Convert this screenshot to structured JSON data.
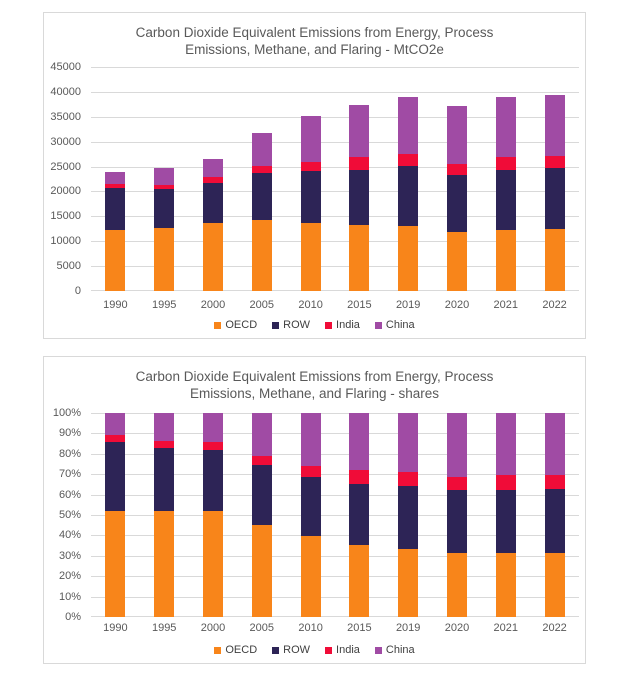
{
  "colors": {
    "oecd": "#F8851A",
    "row": "#2D2456",
    "india": "#F00C38",
    "china": "#A04BA4",
    "gridline": "#D9D9D9",
    "card_border": "#D9D9D9",
    "axis_text": "#595959",
    "title_text": "#595959",
    "legend_text": "#404040",
    "background": "#FFFFFF"
  },
  "chart_data": [
    {
      "type": "bar",
      "stacked": true,
      "title": "Carbon Dioxide Equivalent Emissions from Energy, Process Emissions, Methane, and Flaring - MtCO2e",
      "title_lines": [
        "Carbon Dioxide Equivalent Emissions from Energy, Process",
        "Emissions, Methane, and Flaring - MtCO2e"
      ],
      "unit": "MtCO2e",
      "categories": [
        "1990",
        "1995",
        "2000",
        "2005",
        "2010",
        "2015",
        "2019",
        "2020",
        "2021",
        "2022"
      ],
      "series": [
        {
          "name": "OECD",
          "color": "#F8851A",
          "values": [
            12300,
            12700,
            13700,
            14300,
            13700,
            13200,
            13100,
            11800,
            12300,
            12500
          ]
        },
        {
          "name": "ROW",
          "color": "#2D2456",
          "values": [
            8400,
            7800,
            8000,
            9400,
            10400,
            11200,
            12100,
            11500,
            12100,
            12200
          ]
        },
        {
          "name": "India",
          "color": "#F00C38",
          "values": [
            700,
            900,
            1200,
            1400,
            1900,
            2600,
            2300,
            2200,
            2600,
            2500
          ]
        },
        {
          "name": "China",
          "color": "#A04BA4",
          "values": [
            2600,
            3300,
            3600,
            6700,
            9100,
            10400,
            11500,
            11700,
            12000,
            12200
          ]
        }
      ],
      "stack_totals": [
        24000,
        24700,
        26500,
        31800,
        35100,
        37400,
        39000,
        37200,
        39000,
        39400
      ],
      "xlabel": "",
      "ylabel": "",
      "ylim": [
        0,
        45000
      ],
      "yticks": [
        "0",
        "5000",
        "10000",
        "15000",
        "20000",
        "25000",
        "30000",
        "35000",
        "40000",
        "45000"
      ],
      "grid": true,
      "legend": [
        "OECD",
        "ROW",
        "India",
        "China"
      ],
      "legend_position": "bottom"
    },
    {
      "type": "bar",
      "stacked": true,
      "title": "Carbon Dioxide Equivalent Emissions from Energy, Process Emissions, Methane, and Flaring - shares",
      "title_lines": [
        "Carbon Dioxide Equivalent Emissions from Energy, Process",
        "Emissions, Methane, and Flaring - shares"
      ],
      "unit": "%",
      "categories": [
        "1990",
        "1995",
        "2000",
        "2005",
        "2010",
        "2015",
        "2019",
        "2020",
        "2021",
        "2022"
      ],
      "series": [
        {
          "name": "OECD",
          "color": "#F8851A",
          "values": [
            52,
            52,
            52,
            45,
            39.5,
            35.5,
            33.5,
            31.5,
            31.5,
            31.5
          ]
        },
        {
          "name": "ROW",
          "color": "#2D2456",
          "values": [
            34,
            31,
            30,
            29.5,
            29,
            29.5,
            30.5,
            31,
            31,
            31.5
          ]
        },
        {
          "name": "India",
          "color": "#F00C38",
          "values": [
            3,
            3.5,
            4,
            4.5,
            5.5,
            7,
            7,
            6,
            7,
            6.5
          ]
        },
        {
          "name": "China",
          "color": "#A04BA4",
          "values": [
            11,
            13.5,
            14,
            21,
            26,
            28,
            29,
            31.5,
            30.5,
            30.5
          ]
        }
      ],
      "stack_totals": [
        100,
        100,
        100,
        100,
        100,
        100,
        100,
        100,
        100,
        100
      ],
      "xlabel": "",
      "ylabel": "",
      "ylim": [
        0,
        100
      ],
      "yticks": [
        "0%",
        "10%",
        "20%",
        "30%",
        "40%",
        "50%",
        "60%",
        "70%",
        "80%",
        "90%",
        "100%"
      ],
      "grid": true,
      "legend": [
        "OECD",
        "ROW",
        "India",
        "China"
      ],
      "legend_position": "bottom"
    }
  ]
}
